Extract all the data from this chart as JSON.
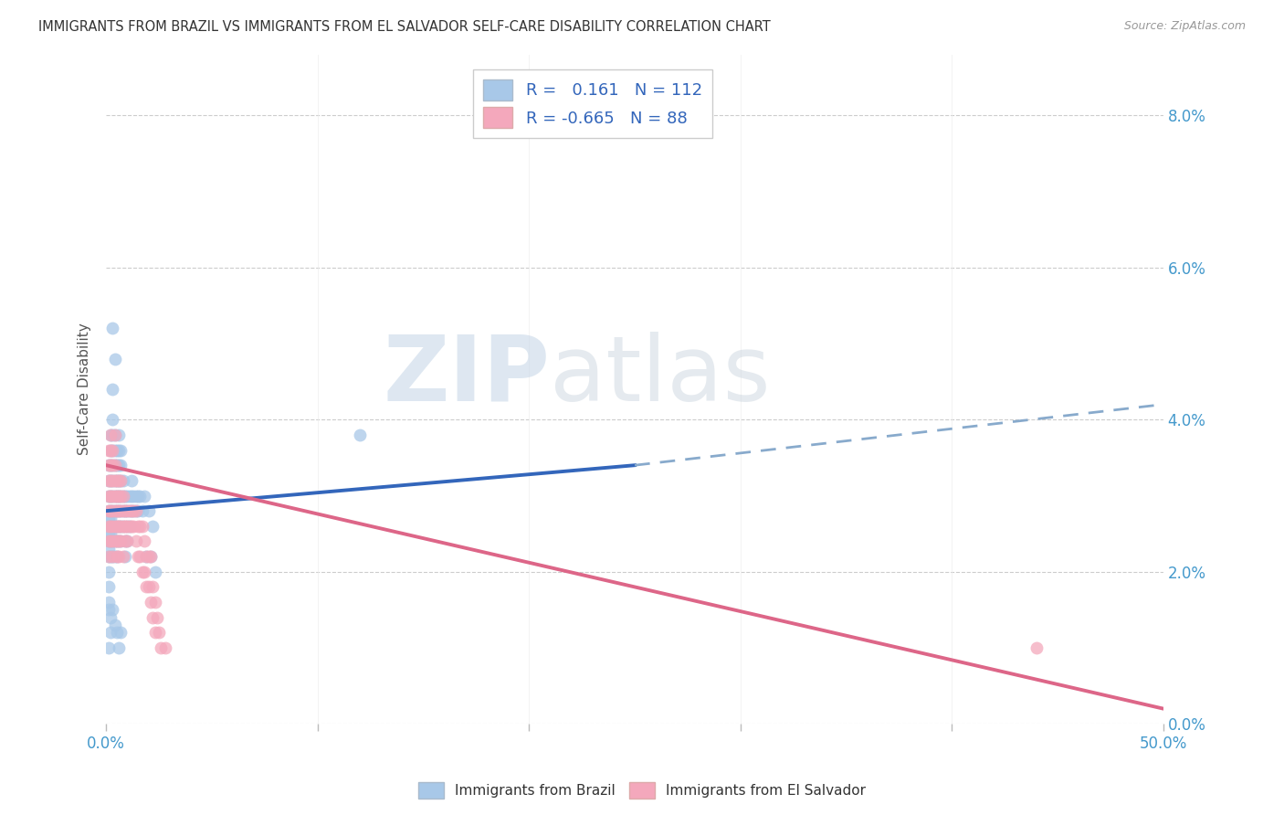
{
  "title": "IMMIGRANTS FROM BRAZIL VS IMMIGRANTS FROM EL SALVADOR SELF-CARE DISABILITY CORRELATION CHART",
  "source": "Source: ZipAtlas.com",
  "ylabel": "Self-Care Disability",
  "x_min": 0.0,
  "x_max": 0.5,
  "y_min": 0.0,
  "y_max": 0.088,
  "brazil_R": 0.161,
  "brazil_N": 112,
  "salvador_R": -0.665,
  "salvador_N": 88,
  "brazil_color": "#a8c8e8",
  "salvador_color": "#f4a8bc",
  "brazil_line_color": "#3366bb",
  "brazil_dash_color": "#88aacc",
  "salvador_line_color": "#dd6688",
  "brazil_scatter": [
    [
      0.001,
      0.028
    ],
    [
      0.001,
      0.026
    ],
    [
      0.001,
      0.024
    ],
    [
      0.001,
      0.022
    ],
    [
      0.001,
      0.02
    ],
    [
      0.001,
      0.018
    ],
    [
      0.001,
      0.016
    ],
    [
      0.001,
      0.03
    ],
    [
      0.001,
      0.032
    ],
    [
      0.001,
      0.034
    ],
    [
      0.001,
      0.027
    ],
    [
      0.001,
      0.025
    ],
    [
      0.001,
      0.023
    ],
    [
      0.002,
      0.03
    ],
    [
      0.002,
      0.028
    ],
    [
      0.002,
      0.026
    ],
    [
      0.002,
      0.024
    ],
    [
      0.002,
      0.022
    ],
    [
      0.002,
      0.032
    ],
    [
      0.002,
      0.034
    ],
    [
      0.002,
      0.036
    ],
    [
      0.002,
      0.038
    ],
    [
      0.002,
      0.025
    ],
    [
      0.002,
      0.027
    ],
    [
      0.003,
      0.03
    ],
    [
      0.003,
      0.028
    ],
    [
      0.003,
      0.026
    ],
    [
      0.003,
      0.032
    ],
    [
      0.003,
      0.034
    ],
    [
      0.003,
      0.022
    ],
    [
      0.003,
      0.024
    ],
    [
      0.003,
      0.036
    ],
    [
      0.003,
      0.038
    ],
    [
      0.004,
      0.03
    ],
    [
      0.004,
      0.028
    ],
    [
      0.004,
      0.026
    ],
    [
      0.004,
      0.024
    ],
    [
      0.004,
      0.032
    ],
    [
      0.004,
      0.034
    ],
    [
      0.004,
      0.036
    ],
    [
      0.004,
      0.022
    ],
    [
      0.004,
      0.038
    ],
    [
      0.005,
      0.03
    ],
    [
      0.005,
      0.028
    ],
    [
      0.005,
      0.032
    ],
    [
      0.005,
      0.026
    ],
    [
      0.005,
      0.034
    ],
    [
      0.005,
      0.024
    ],
    [
      0.005,
      0.036
    ],
    [
      0.005,
      0.022
    ],
    [
      0.006,
      0.03
    ],
    [
      0.006,
      0.028
    ],
    [
      0.006,
      0.032
    ],
    [
      0.006,
      0.026
    ],
    [
      0.006,
      0.034
    ],
    [
      0.006,
      0.024
    ],
    [
      0.006,
      0.036
    ],
    [
      0.006,
      0.038
    ],
    [
      0.007,
      0.03
    ],
    [
      0.007,
      0.028
    ],
    [
      0.007,
      0.032
    ],
    [
      0.007,
      0.026
    ],
    [
      0.007,
      0.034
    ],
    [
      0.007,
      0.024
    ],
    [
      0.008,
      0.03
    ],
    [
      0.008,
      0.028
    ],
    [
      0.008,
      0.032
    ],
    [
      0.008,
      0.026
    ],
    [
      0.009,
      0.03
    ],
    [
      0.009,
      0.028
    ],
    [
      0.009,
      0.022
    ],
    [
      0.009,
      0.024
    ],
    [
      0.01,
      0.03
    ],
    [
      0.01,
      0.028
    ],
    [
      0.01,
      0.026
    ],
    [
      0.01,
      0.024
    ],
    [
      0.011,
      0.03
    ],
    [
      0.011,
      0.028
    ],
    [
      0.011,
      0.026
    ],
    [
      0.012,
      0.03
    ],
    [
      0.012,
      0.028
    ],
    [
      0.012,
      0.032
    ],
    [
      0.013,
      0.03
    ],
    [
      0.013,
      0.028
    ],
    [
      0.014,
      0.03
    ],
    [
      0.014,
      0.028
    ],
    [
      0.015,
      0.03
    ],
    [
      0.015,
      0.028
    ],
    [
      0.016,
      0.03
    ],
    [
      0.017,
      0.028
    ],
    [
      0.018,
      0.03
    ],
    [
      0.019,
      0.022
    ],
    [
      0.02,
      0.028
    ],
    [
      0.021,
      0.022
    ],
    [
      0.022,
      0.026
    ],
    [
      0.023,
      0.02
    ],
    [
      0.001,
      0.015
    ],
    [
      0.002,
      0.012
    ],
    [
      0.002,
      0.014
    ],
    [
      0.003,
      0.015
    ],
    [
      0.004,
      0.013
    ],
    [
      0.005,
      0.012
    ],
    [
      0.006,
      0.01
    ],
    [
      0.007,
      0.012
    ],
    [
      0.003,
      0.052
    ],
    [
      0.004,
      0.048
    ],
    [
      0.003,
      0.044
    ],
    [
      0.003,
      0.04
    ],
    [
      0.007,
      0.036
    ],
    [
      0.001,
      0.01
    ],
    [
      0.12,
      0.038
    ]
  ],
  "salvador_scatter": [
    [
      0.001,
      0.03
    ],
    [
      0.001,
      0.028
    ],
    [
      0.001,
      0.026
    ],
    [
      0.001,
      0.024
    ],
    [
      0.001,
      0.022
    ],
    [
      0.001,
      0.032
    ],
    [
      0.001,
      0.034
    ],
    [
      0.001,
      0.036
    ],
    [
      0.002,
      0.03
    ],
    [
      0.002,
      0.028
    ],
    [
      0.002,
      0.026
    ],
    [
      0.002,
      0.032
    ],
    [
      0.002,
      0.034
    ],
    [
      0.002,
      0.024
    ],
    [
      0.002,
      0.036
    ],
    [
      0.002,
      0.038
    ],
    [
      0.003,
      0.03
    ],
    [
      0.003,
      0.028
    ],
    [
      0.003,
      0.032
    ],
    [
      0.003,
      0.026
    ],
    [
      0.003,
      0.034
    ],
    [
      0.003,
      0.024
    ],
    [
      0.003,
      0.036
    ],
    [
      0.003,
      0.022
    ],
    [
      0.004,
      0.03
    ],
    [
      0.004,
      0.028
    ],
    [
      0.004,
      0.032
    ],
    [
      0.004,
      0.026
    ],
    [
      0.004,
      0.034
    ],
    [
      0.004,
      0.038
    ],
    [
      0.004,
      0.024
    ],
    [
      0.005,
      0.03
    ],
    [
      0.005,
      0.028
    ],
    [
      0.005,
      0.032
    ],
    [
      0.005,
      0.026
    ],
    [
      0.005,
      0.024
    ],
    [
      0.005,
      0.022
    ],
    [
      0.006,
      0.03
    ],
    [
      0.006,
      0.028
    ],
    [
      0.006,
      0.032
    ],
    [
      0.006,
      0.026
    ],
    [
      0.006,
      0.024
    ],
    [
      0.006,
      0.022
    ],
    [
      0.007,
      0.03
    ],
    [
      0.007,
      0.028
    ],
    [
      0.007,
      0.032
    ],
    [
      0.007,
      0.026
    ],
    [
      0.007,
      0.024
    ],
    [
      0.008,
      0.03
    ],
    [
      0.008,
      0.028
    ],
    [
      0.008,
      0.026
    ],
    [
      0.008,
      0.022
    ],
    [
      0.009,
      0.028
    ],
    [
      0.009,
      0.026
    ],
    [
      0.009,
      0.024
    ],
    [
      0.01,
      0.028
    ],
    [
      0.01,
      0.026
    ],
    [
      0.01,
      0.024
    ],
    [
      0.011,
      0.028
    ],
    [
      0.011,
      0.026
    ],
    [
      0.012,
      0.028
    ],
    [
      0.012,
      0.026
    ],
    [
      0.013,
      0.028
    ],
    [
      0.013,
      0.026
    ],
    [
      0.014,
      0.028
    ],
    [
      0.014,
      0.024
    ],
    [
      0.015,
      0.026
    ],
    [
      0.015,
      0.022
    ],
    [
      0.016,
      0.026
    ],
    [
      0.016,
      0.022
    ],
    [
      0.017,
      0.026
    ],
    [
      0.017,
      0.02
    ],
    [
      0.018,
      0.024
    ],
    [
      0.018,
      0.02
    ],
    [
      0.019,
      0.022
    ],
    [
      0.019,
      0.018
    ],
    [
      0.02,
      0.022
    ],
    [
      0.02,
      0.018
    ],
    [
      0.021,
      0.022
    ],
    [
      0.021,
      0.016
    ],
    [
      0.022,
      0.018
    ],
    [
      0.022,
      0.014
    ],
    [
      0.023,
      0.016
    ],
    [
      0.023,
      0.012
    ],
    [
      0.024,
      0.014
    ],
    [
      0.025,
      0.012
    ],
    [
      0.026,
      0.01
    ],
    [
      0.028,
      0.01
    ],
    [
      0.44,
      0.01
    ]
  ],
  "brazil_trendline_solid": [
    [
      0.0,
      0.028
    ],
    [
      0.25,
      0.034
    ]
  ],
  "brazil_trendline_dashed": [
    [
      0.25,
      0.034
    ],
    [
      0.5,
      0.042
    ]
  ],
  "salvador_trendline": [
    [
      0.0,
      0.034
    ],
    [
      0.5,
      0.002
    ]
  ],
  "watermark_zip": "ZIP",
  "watermark_atlas": "atlas",
  "legend_brazil_label": "R =   0.161   N = 112",
  "legend_salvador_label": "R = -0.665   N = 88",
  "bottom_legend_brazil": "Immigrants from Brazil",
  "bottom_legend_salvador": "Immigrants from El Salvador",
  "xtick_left": "0.0%",
  "xtick_right": "50.0%",
  "yticks_right": [
    0.0,
    0.02,
    0.04,
    0.06,
    0.08
  ],
  "ytick_labels_right": [
    "0.0%",
    "2.0%",
    "4.0%",
    "6.0%",
    "8.0%"
  ]
}
